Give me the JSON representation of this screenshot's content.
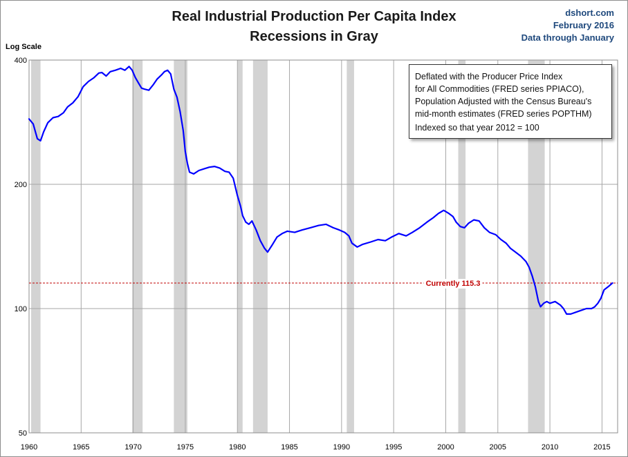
{
  "chart_data": {
    "type": "line",
    "title": "Real Industrial Production Per Capita Index",
    "subtitle": "Recessions in Gray",
    "source_lines": [
      "dshort.com",
      "February 2016",
      "Data through January"
    ],
    "ylabel": "Log Scale",
    "y_scale": "log",
    "ylim": [
      50,
      400
    ],
    "xlim": [
      1960,
      2016.5
    ],
    "y_ticks": [
      {
        "value": 50,
        "label": "50"
      },
      {
        "value": 100,
        "label": "100"
      },
      {
        "value": 200,
        "label": "200"
      },
      {
        "value": 400,
        "label": "400"
      }
    ],
    "x_ticks": [
      {
        "value": 1960,
        "label": "1960"
      },
      {
        "value": 1965,
        "label": "1965"
      },
      {
        "value": 1970,
        "label": "1970"
      },
      {
        "value": 1975,
        "label": "1975"
      },
      {
        "value": 1980,
        "label": "1980"
      },
      {
        "value": 1985,
        "label": "1985"
      },
      {
        "value": 1990,
        "label": "1990"
      },
      {
        "value": 1995,
        "label": "1995"
      },
      {
        "value": 2000,
        "label": "2000"
      },
      {
        "value": 2005,
        "label": "2005"
      },
      {
        "value": 2010,
        "label": "2010"
      },
      {
        "value": 2015,
        "label": "2015"
      }
    ],
    "grid": true,
    "recessions": [
      [
        1960.2,
        1961.1
      ],
      [
        1969.9,
        1970.9
      ],
      [
        1973.9,
        1975.2
      ],
      [
        1980.0,
        1980.5
      ],
      [
        1981.5,
        1982.9
      ],
      [
        1990.5,
        1991.2
      ],
      [
        2001.2,
        2001.9
      ],
      [
        2007.9,
        2009.5
      ]
    ],
    "current": {
      "value": 115.3,
      "label": "Currently  115.3"
    },
    "annotation_lines": [
      "Deflated with the Producer Price Index",
      "for All Commodities  (FRED series PPIACO),",
      "Population Adjusted with the Census Bureau's",
      "mid-month estimates (FRED series POPTHM)",
      "Indexed so that year 2012  = 100"
    ],
    "colors": {
      "line": "#0000ff",
      "recession": "#d3d3d3",
      "current_line": "#c00000",
      "current_label": "#c00000",
      "grid": "#a6a6a6"
    },
    "series": [
      {
        "x": [
          1960.0,
          1960.4,
          1960.8,
          1961.1,
          1961.4,
          1961.8,
          1962.3,
          1962.8,
          1963.3,
          1963.7,
          1964.2,
          1964.7,
          1965.2,
          1965.7,
          1966.2,
          1966.7,
          1967.0,
          1967.4,
          1967.8,
          1968.3,
          1968.8,
          1969.2,
          1969.6,
          1969.9,
          1970.2,
          1970.5,
          1970.8,
          1971.1,
          1971.5,
          1971.9,
          1972.3,
          1972.7,
          1973.0,
          1973.3,
          1973.6,
          1973.9,
          1974.2,
          1974.5,
          1974.8,
          1975.0,
          1975.2,
          1975.4,
          1975.8,
          1976.3,
          1976.8,
          1977.3,
          1977.8,
          1978.3,
          1978.8,
          1979.2,
          1979.6,
          1980.0,
          1980.3,
          1980.5,
          1980.8,
          1981.1,
          1981.4,
          1981.8,
          1982.2,
          1982.6,
          1982.9,
          1983.3,
          1983.8,
          1984.3,
          1984.8,
          1985.5,
          1986.2,
          1987.0,
          1987.8,
          1988.5,
          1989.2,
          1989.8,
          1990.3,
          1990.7,
          1991.0,
          1991.5,
          1992.0,
          1992.8,
          1993.5,
          1994.2,
          1994.8,
          1995.5,
          1996.2,
          1996.8,
          1997.5,
          1998.2,
          1998.8,
          1999.3,
          1999.8,
          2000.3,
          2000.7,
          2001.0,
          2001.4,
          2001.8,
          2002.2,
          2002.7,
          2003.2,
          2003.7,
          2004.2,
          2004.8,
          2005.3,
          2005.8,
          2006.2,
          2006.7,
          2007.2,
          2007.7,
          2008.0,
          2008.3,
          2008.6,
          2008.9,
          2009.1,
          2009.4,
          2009.7,
          2010.0,
          2010.5,
          2011.0,
          2011.3,
          2011.6,
          2012.0,
          2012.5,
          2013.0,
          2013.5,
          2014.0,
          2014.3,
          2014.6,
          2014.9,
          2015.2,
          2015.6,
          2016.0
        ],
        "y": [
          288,
          280,
          258,
          255,
          268,
          282,
          290,
          292,
          298,
          308,
          315,
          326,
          345,
          355,
          362,
          372,
          373,
          366,
          375,
          378,
          382,
          378,
          386,
          378,
          363,
          352,
          342,
          340,
          338,
          348,
          360,
          368,
          375,
          378,
          370,
          340,
          325,
          300,
          270,
          240,
          225,
          214,
          212,
          216,
          218,
          220,
          221,
          219,
          215,
          214,
          207,
          188,
          177,
          168,
          162,
          160,
          163,
          155,
          146,
          140,
          137,
          142,
          149,
          152,
          154,
          153,
          155,
          157,
          159,
          160,
          157,
          155,
          153,
          150,
          144,
          141,
          143,
          145,
          147,
          146,
          149,
          152,
          150,
          153,
          157,
          162,
          166,
          170,
          173,
          170,
          167,
          162,
          158,
          157,
          161,
          164,
          163,
          157,
          153,
          151,
          147,
          144,
          140,
          137,
          134,
          130,
          126,
          120,
          113,
          104,
          101,
          103,
          104,
          103,
          104,
          102,
          100,
          97,
          97,
          98,
          99,
          100,
          100,
          101,
          103,
          106,
          111,
          113,
          115.3
        ]
      }
    ]
  }
}
